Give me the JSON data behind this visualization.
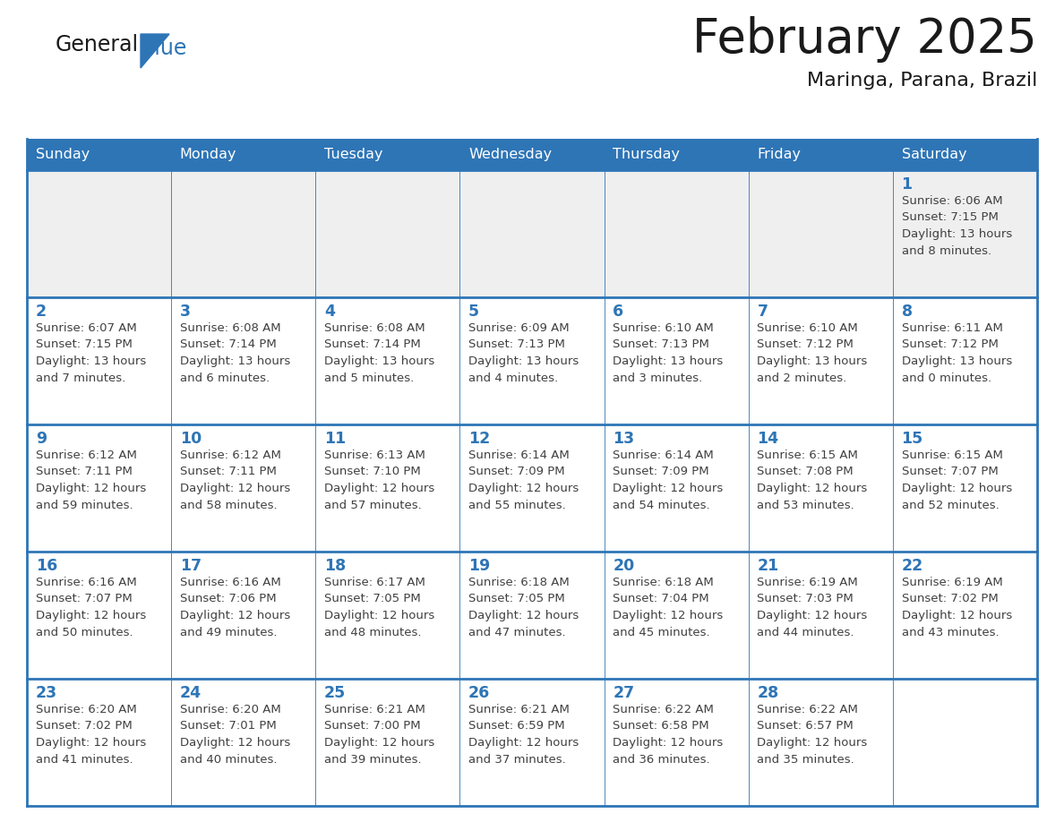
{
  "title": "February 2025",
  "subtitle": "Maringa, Parana, Brazil",
  "days_of_week": [
    "Sunday",
    "Monday",
    "Tuesday",
    "Wednesday",
    "Thursday",
    "Friday",
    "Saturday"
  ],
  "header_bg_color": "#2E75B6",
  "header_text_color": "#FFFFFF",
  "cell_bg_color": "#FFFFFF",
  "cell_alt_bg_color": "#EFEFEF",
  "border_color": "#2E75B6",
  "day_num_color": "#2E75B6",
  "info_text_color": "#404040",
  "title_color": "#1a1a1a",
  "subtitle_color": "#1a1a1a",
  "logo_general_color": "#1a1a1a",
  "logo_blue_color": "#2E75B6",
  "calendar_data": [
    [
      "",
      "",
      "",
      "",
      "",
      "",
      "1\nSunrise: 6:06 AM\nSunset: 7:15 PM\nDaylight: 13 hours\nand 8 minutes."
    ],
    [
      "2\nSunrise: 6:07 AM\nSunset: 7:15 PM\nDaylight: 13 hours\nand 7 minutes.",
      "3\nSunrise: 6:08 AM\nSunset: 7:14 PM\nDaylight: 13 hours\nand 6 minutes.",
      "4\nSunrise: 6:08 AM\nSunset: 7:14 PM\nDaylight: 13 hours\nand 5 minutes.",
      "5\nSunrise: 6:09 AM\nSunset: 7:13 PM\nDaylight: 13 hours\nand 4 minutes.",
      "6\nSunrise: 6:10 AM\nSunset: 7:13 PM\nDaylight: 13 hours\nand 3 minutes.",
      "7\nSunrise: 6:10 AM\nSunset: 7:12 PM\nDaylight: 13 hours\nand 2 minutes.",
      "8\nSunrise: 6:11 AM\nSunset: 7:12 PM\nDaylight: 13 hours\nand 0 minutes."
    ],
    [
      "9\nSunrise: 6:12 AM\nSunset: 7:11 PM\nDaylight: 12 hours\nand 59 minutes.",
      "10\nSunrise: 6:12 AM\nSunset: 7:11 PM\nDaylight: 12 hours\nand 58 minutes.",
      "11\nSunrise: 6:13 AM\nSunset: 7:10 PM\nDaylight: 12 hours\nand 57 minutes.",
      "12\nSunrise: 6:14 AM\nSunset: 7:09 PM\nDaylight: 12 hours\nand 55 minutes.",
      "13\nSunrise: 6:14 AM\nSunset: 7:09 PM\nDaylight: 12 hours\nand 54 minutes.",
      "14\nSunrise: 6:15 AM\nSunset: 7:08 PM\nDaylight: 12 hours\nand 53 minutes.",
      "15\nSunrise: 6:15 AM\nSunset: 7:07 PM\nDaylight: 12 hours\nand 52 minutes."
    ],
    [
      "16\nSunrise: 6:16 AM\nSunset: 7:07 PM\nDaylight: 12 hours\nand 50 minutes.",
      "17\nSunrise: 6:16 AM\nSunset: 7:06 PM\nDaylight: 12 hours\nand 49 minutes.",
      "18\nSunrise: 6:17 AM\nSunset: 7:05 PM\nDaylight: 12 hours\nand 48 minutes.",
      "19\nSunrise: 6:18 AM\nSunset: 7:05 PM\nDaylight: 12 hours\nand 47 minutes.",
      "20\nSunrise: 6:18 AM\nSunset: 7:04 PM\nDaylight: 12 hours\nand 45 minutes.",
      "21\nSunrise: 6:19 AM\nSunset: 7:03 PM\nDaylight: 12 hours\nand 44 minutes.",
      "22\nSunrise: 6:19 AM\nSunset: 7:02 PM\nDaylight: 12 hours\nand 43 minutes."
    ],
    [
      "23\nSunrise: 6:20 AM\nSunset: 7:02 PM\nDaylight: 12 hours\nand 41 minutes.",
      "24\nSunrise: 6:20 AM\nSunset: 7:01 PM\nDaylight: 12 hours\nand 40 minutes.",
      "25\nSunrise: 6:21 AM\nSunset: 7:00 PM\nDaylight: 12 hours\nand 39 minutes.",
      "26\nSunrise: 6:21 AM\nSunset: 6:59 PM\nDaylight: 12 hours\nand 37 minutes.",
      "27\nSunrise: 6:22 AM\nSunset: 6:58 PM\nDaylight: 12 hours\nand 36 minutes.",
      "28\nSunrise: 6:22 AM\nSunset: 6:57 PM\nDaylight: 12 hours\nand 35 minutes.",
      ""
    ]
  ],
  "row0_bg": "#EFEFEF"
}
